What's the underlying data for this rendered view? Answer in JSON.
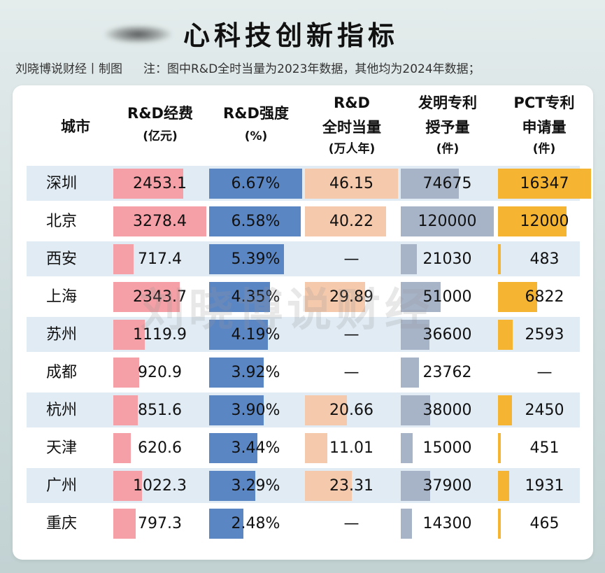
{
  "title": "心科技创新指标",
  "credit": "刘晓博说财经丨制图",
  "note": "注：图中R&D全时当量为2023年数据，其他均为2024年数据；",
  "watermark": "刘晓博说财经",
  "headers": [
    {
      "lines": [
        "城市"
      ]
    },
    {
      "lines": [
        "R&D经费",
        "(亿元)"
      ]
    },
    {
      "lines": [
        "R&D强度",
        "(%)"
      ]
    },
    {
      "lines": [
        "R&D",
        "全时当量",
        "(万人年)"
      ]
    },
    {
      "lines": [
        "发明专利",
        "授予量",
        "(件)"
      ]
    },
    {
      "lines": [
        "PCT专利",
        "申请量",
        "(件)"
      ]
    }
  ],
  "colors": {
    "rd_funding": "#f4a0a6",
    "rd_intensity": "#5b86c4",
    "fte": "#f5c9ac",
    "patents": "#a7b4c8",
    "pct": "#f5b431",
    "row_shade": "#e1ebf4"
  },
  "chart_data": {
    "type": "table",
    "columns": [
      "城市",
      "R&D经费(亿元)",
      "R&D强度(%)",
      "R&D全时当量(万人年)",
      "发明专利授予量(件)",
      "PCT专利申请量(件)"
    ],
    "rows": [
      {
        "city": "深圳",
        "rd_funding": "2453.1",
        "rd_intensity": "6.67%",
        "fte": "46.15",
        "patents": "74675",
        "pct": "16347"
      },
      {
        "city": "北京",
        "rd_funding": "3278.4",
        "rd_intensity": "6.58%",
        "fte": "40.22",
        "patents": "120000",
        "pct": "12000"
      },
      {
        "city": "西安",
        "rd_funding": "717.4",
        "rd_intensity": "5.39%",
        "fte": "—",
        "patents": "21030",
        "pct": "483"
      },
      {
        "city": "上海",
        "rd_funding": "2343.7",
        "rd_intensity": "4.35%",
        "fte": "29.89",
        "patents": "51000",
        "pct": "6822"
      },
      {
        "city": "苏州",
        "rd_funding": "1119.9",
        "rd_intensity": "4.19%",
        "fte": "—",
        "patents": "36600",
        "pct": "2593"
      },
      {
        "city": "成都",
        "rd_funding": "920.9",
        "rd_intensity": "3.92%",
        "fte": "—",
        "patents": "23762",
        "pct": "—"
      },
      {
        "city": "杭州",
        "rd_funding": "851.6",
        "rd_intensity": "3.90%",
        "fte": "20.66",
        "patents": "38000",
        "pct": "2450"
      },
      {
        "city": "天津",
        "rd_funding": "620.6",
        "rd_intensity": "3.44%",
        "fte": "11.01",
        "patents": "15000",
        "pct": "451"
      },
      {
        "city": "广州",
        "rd_funding": "1022.3",
        "rd_intensity": "3.29%",
        "fte": "23.31",
        "patents": "37900",
        "pct": "1931"
      },
      {
        "city": "重庆",
        "rd_funding": "797.3",
        "rd_intensity": "2.48%",
        "fte": "—",
        "patents": "14300",
        "pct": "465"
      }
    ]
  }
}
